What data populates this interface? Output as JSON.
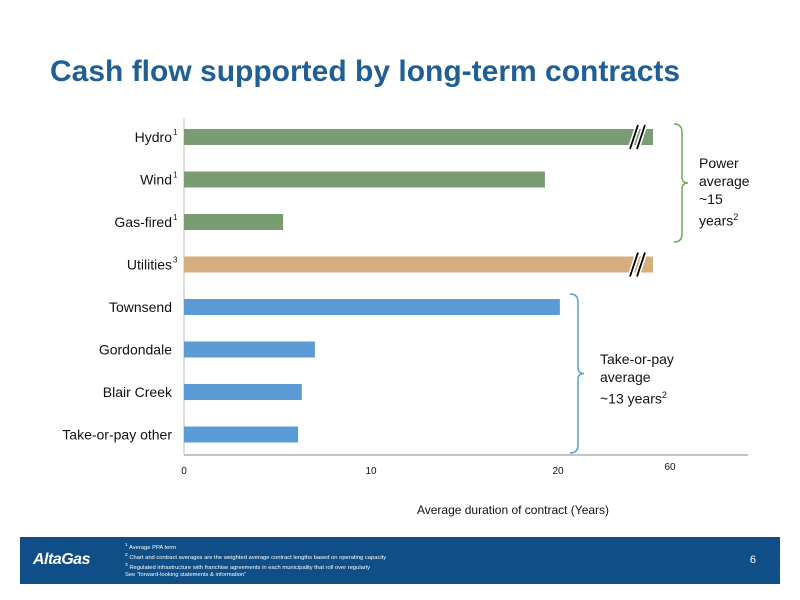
{
  "title": "Cash flow supported by long-term contracts",
  "chart_data": {
    "type": "bar",
    "orientation": "horizontal",
    "categories": [
      "Hydro",
      "Wind",
      "Gas-fired",
      "Utilities",
      "Townsend",
      "Gordondale",
      "Blair Creek",
      "Take-or-pay other"
    ],
    "category_superscripts": [
      "1",
      "1",
      "1",
      "3",
      "",
      "",
      "",
      ""
    ],
    "values": [
      60,
      19.3,
      5.3,
      60,
      20.1,
      7,
      6.3,
      6.1
    ],
    "bar_colors": [
      "#7a9c72",
      "#7a9c72",
      "#7a9c72",
      "#d6ad7c",
      "#5b9bd5",
      "#5b9bd5",
      "#5b9bd5",
      "#5b9bd5"
    ],
    "axis_break_bars": [
      "Hydro",
      "Utilities"
    ],
    "xticks": [
      "0",
      "10",
      "20",
      "60"
    ],
    "xlabel": "Average duration of contract (Years)",
    "grid": false
  },
  "brackets": [
    {
      "name": "power",
      "lines": [
        "Power",
        "average",
        "~15",
        "years"
      ],
      "sup": "2"
    },
    {
      "name": "take-or-pay",
      "lines": [
        "Take-or-pay",
        "average",
        "~13 years"
      ],
      "sup": "2"
    }
  ],
  "footer": {
    "logo": "AltaGas",
    "notes": [
      {
        "sup": "1",
        "text": "Average PPA term"
      },
      {
        "sup": "2",
        "text": "Chart and contract averages are the weighted average contract lengths based on operating capacity"
      },
      {
        "sup": "3",
        "text": "Regulated infrastructure with franchise agreements in each municipality that roll over regularly"
      },
      {
        "sup": "",
        "text": "See “forward-looking statements & information”"
      }
    ],
    "page_number": "6"
  },
  "colors": {
    "title": "#1f5f96",
    "footer_bg": "#0f4e86",
    "bracket": "#6ea75a",
    "bracket_blue": "#5b9bd5"
  }
}
